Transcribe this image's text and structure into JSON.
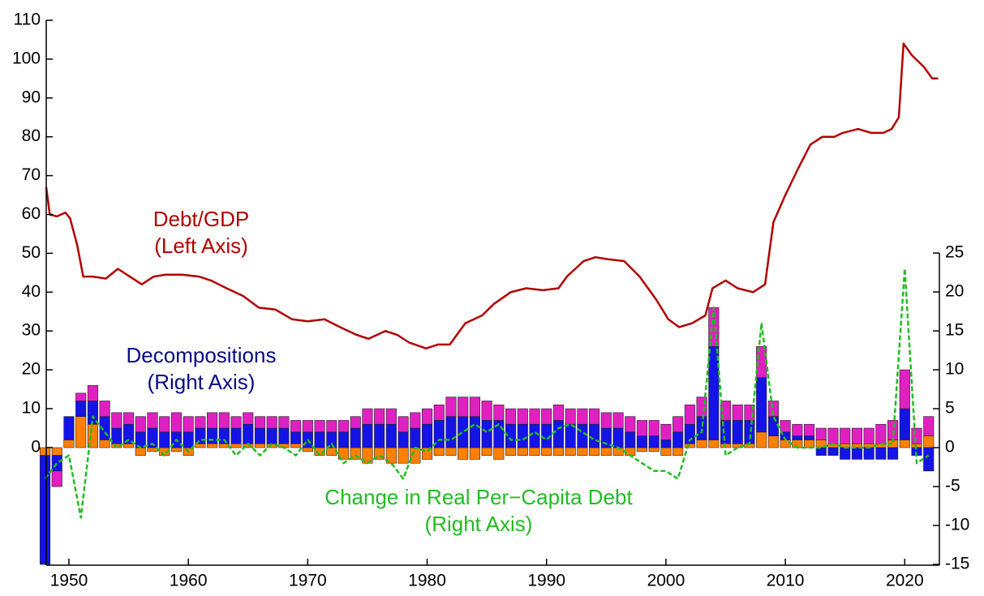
{
  "chart_data": {
    "type": "bar-line-dual-axis",
    "x": [
      1948,
      1949,
      1950,
      1951,
      1952,
      1953,
      1954,
      1955,
      1956,
      1957,
      1958,
      1959,
      1960,
      1961,
      1962,
      1963,
      1964,
      1965,
      1966,
      1967,
      1968,
      1969,
      1970,
      1971,
      1972,
      1973,
      1974,
      1975,
      1976,
      1977,
      1978,
      1979,
      1980,
      1981,
      1982,
      1983,
      1984,
      1985,
      1986,
      1987,
      1988,
      1989,
      1990,
      1991,
      1992,
      1993,
      1994,
      1995,
      1996,
      1997,
      1998,
      1999,
      2000,
      2001,
      2002,
      2003,
      2004,
      2005,
      2006,
      2007,
      2008,
      2009,
      2010,
      2011,
      2012,
      2013,
      2014,
      2015,
      2016,
      2017,
      2018,
      2019,
      2020,
      2021,
      2022
    ],
    "xlim": [
      1948.1,
      2022.9
    ],
    "xticks": [
      1950,
      1960,
      1970,
      1980,
      1990,
      2000,
      2010,
      2020
    ],
    "ylim": [
      -30.3,
      110
    ],
    "yticks": [
      0,
      10,
      20,
      30,
      40,
      50,
      60,
      70,
      80,
      90,
      100,
      110
    ],
    "y2lim": [
      -15.1,
      54.9
    ],
    "y2ticks": [
      -15,
      -10,
      -5,
      0,
      5,
      10,
      15,
      20,
      25
    ],
    "series": [
      {
        "type": "line",
        "color": "#b00000",
        "x": [
          1948.1,
          1948.4,
          1949.0,
          1949.7,
          1950.1,
          1950.7,
          1951.2,
          1952.0,
          1953.1,
          1954.1,
          1955.1,
          1956.1,
          1957.1,
          1958.1,
          1959.5,
          1960.9,
          1961.9,
          1963.2,
          1964.6,
          1965.9,
          1967.3,
          1968.7,
          1970.0,
          1971.4,
          1972.7,
          1974.1,
          1975.1,
          1976.5,
          1977.5,
          1978.5,
          1979.9,
          1980.9,
          1981.9,
          1983.2,
          1984.6,
          1985.6,
          1987.0,
          1988.3,
          1989.7,
          1991.0,
          1991.7,
          1993.1,
          1994.1,
          1995.1,
          1996.5,
          1997.8,
          1999.2,
          2000.2,
          2001.1,
          2002.2,
          2003.3,
          2003.9,
          2005.0,
          2006.0,
          2007.3,
          2008.3,
          2009.0,
          2010.0,
          2011.1,
          2012.1,
          2013.1,
          2014.1,
          2014.8,
          2016.1,
          2017.2,
          2018.2,
          2018.9,
          2019.5,
          2019.9,
          2020.6,
          2021.6,
          2022.3,
          2022.8
        ],
        "values": [
          67,
          60,
          59.5,
          60.5,
          59,
          52,
          44,
          44,
          43.5,
          46,
          44,
          42,
          44,
          44.5,
          44.5,
          44,
          43,
          41,
          39,
          36,
          35.5,
          33,
          32.5,
          33,
          31,
          29,
          28,
          30,
          29,
          27,
          25.5,
          26.5,
          26.5,
          32,
          34,
          37,
          40,
          41,
          40.5,
          41,
          44,
          48,
          49,
          48.5,
          48,
          44,
          38,
          33,
          31,
          32,
          34,
          41,
          43,
          41,
          40,
          42,
          58,
          65,
          72,
          78,
          80,
          80,
          81,
          82,
          81,
          81,
          82,
          85,
          104,
          101,
          98,
          95,
          95
        ]
      },
      {
        "type": "bar",
        "axis": "y2",
        "color": "#ff8000",
        "values": [
          -1,
          -1,
          1,
          4,
          3,
          1,
          0.5,
          0.5,
          -1,
          -0.5,
          -1,
          -0.5,
          -1,
          0.5,
          0.5,
          0.5,
          0.5,
          0.5,
          0.5,
          0.5,
          0.5,
          0.5,
          -0.5,
          -1,
          -1,
          -1.5,
          -1.5,
          -2,
          -1.5,
          -2,
          -2,
          -2,
          -1.5,
          -1,
          -1,
          -1.5,
          -1.5,
          -1,
          -1.5,
          -1,
          -1,
          -1,
          -1,
          -1,
          -1,
          -1,
          -1,
          -1,
          -1,
          -1,
          -0.5,
          -0.5,
          -1,
          -1,
          0.5,
          1,
          1,
          0.5,
          0.5,
          0.5,
          2,
          1.5,
          1,
          1,
          1,
          1,
          0.5,
          0.5,
          0.5,
          0.5,
          0.5,
          1,
          1,
          0.5,
          1.5
        ]
      },
      {
        "type": "bar",
        "axis": "y2",
        "color": "#1414e6",
        "values": [
          -14,
          -2,
          3,
          2,
          3,
          3,
          2,
          2.5,
          2,
          2.5,
          2,
          2,
          2,
          2,
          2,
          2,
          2,
          2.5,
          2,
          2,
          2,
          1.5,
          2,
          2,
          2,
          2,
          2.5,
          3,
          3,
          3,
          2,
          2.5,
          3,
          3.5,
          4,
          4,
          4,
          3.5,
          3.5,
          3,
          3,
          3,
          3,
          3.5,
          3,
          3,
          3,
          2.5,
          2.5,
          2,
          1.5,
          1.5,
          1,
          2,
          2.5,
          3,
          12,
          3,
          3,
          3,
          7,
          2.5,
          1,
          0.5,
          0.5,
          -1,
          -1,
          -1.5,
          -1.5,
          -1.5,
          -1.5,
          -1.5,
          4,
          -1,
          -3
        ]
      },
      {
        "type": "bar",
        "axis": "y2",
        "color": "#e020c0",
        "values": [
          0,
          -2,
          0,
          1,
          2,
          2,
          2,
          1.5,
          2,
          2,
          2,
          2.5,
          2,
          1.5,
          2,
          2,
          1.5,
          1.5,
          1.5,
          1.5,
          1.5,
          1.5,
          1.5,
          1.5,
          1.5,
          1.5,
          1.5,
          2,
          2,
          2,
          2,
          2,
          2,
          2,
          2.5,
          2.5,
          2.5,
          2.5,
          2,
          2,
          2,
          2,
          2,
          2,
          2,
          2,
          2,
          2,
          2,
          2,
          2,
          2,
          2,
          2,
          2.5,
          2.5,
          5,
          2.5,
          2,
          2,
          4,
          2,
          1.5,
          1.5,
          1.5,
          1.5,
          2,
          2,
          2,
          2,
          2.5,
          2.5,
          5,
          2,
          2.5
        ]
      },
      {
        "type": "dashed-line",
        "axis": "y2",
        "color": "#22bb22",
        "values": [
          -4,
          -2,
          -1,
          -9,
          4,
          2,
          0,
          1,
          0,
          0.5,
          -1,
          1,
          -0.5,
          1,
          1,
          1,
          -1,
          0.5,
          -1,
          0.5,
          0,
          -1,
          1,
          -1,
          0.5,
          -2,
          -1,
          -2,
          -1,
          -2,
          -4,
          0,
          -0.5,
          1,
          1,
          2,
          3,
          2,
          3,
          1,
          1,
          2,
          1,
          2.5,
          3,
          2,
          1,
          0.5,
          0,
          -1,
          -2,
          -3,
          -3,
          -4,
          1,
          2,
          18,
          -1,
          0,
          0.5,
          16,
          4,
          1,
          0,
          0,
          0,
          0.5,
          0,
          0,
          0,
          0.5,
          0.5,
          23,
          -2,
          -1
        ]
      }
    ],
    "annotations": [
      {
        "lines": [
          "Debt/GDP",
          "(Left Axis)"
        ],
        "color": "#b00000"
      },
      {
        "lines": [
          "Decompositions",
          "(Right Axis)"
        ],
        "color": "#0a0a80"
      },
      {
        "lines": [
          "Change in Real Per−Capita Debt",
          "(Right Axis)"
        ],
        "color": "#22bb22"
      }
    ]
  }
}
